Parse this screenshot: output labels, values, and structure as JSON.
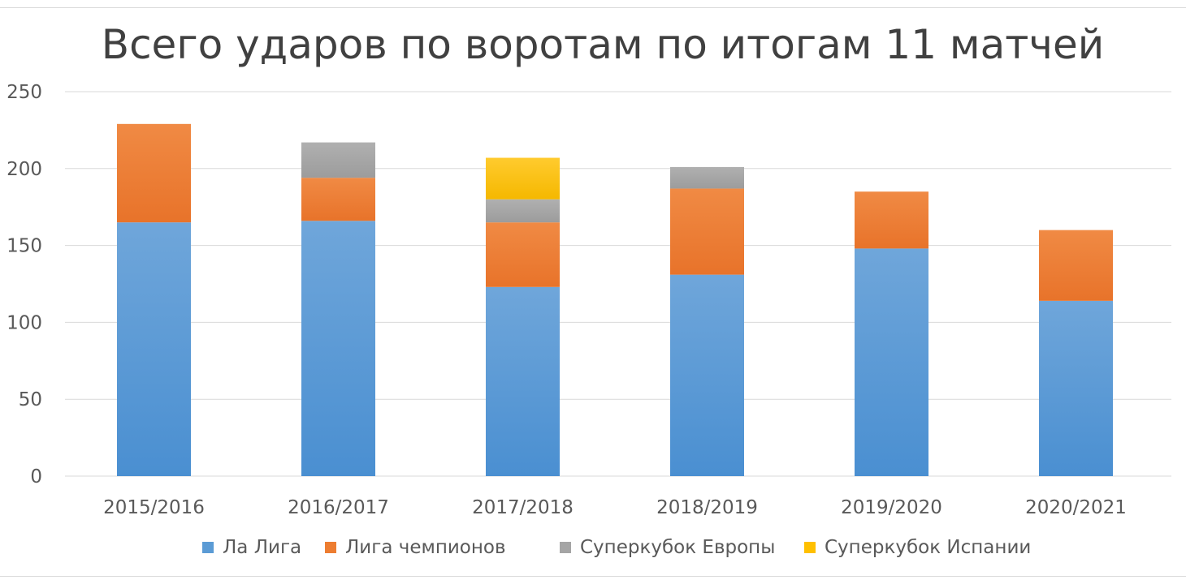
{
  "chart_data": {
    "type": "bar",
    "stacked": true,
    "title": "Всего ударов по воротам по итогам 11 матчей",
    "xlabel": "",
    "ylabel": "",
    "ylim": [
      0,
      250
    ],
    "yticks": [
      0,
      50,
      100,
      150,
      200,
      250
    ],
    "grid": true,
    "legend_position": "bottom",
    "categories": [
      "2015/2016",
      "2016/2017",
      "2017/2018",
      "2018/2019",
      "2019/2020",
      "2020/2021"
    ],
    "series": [
      {
        "name": "Ла Лига",
        "color": "#5b9bd5",
        "values": [
          165,
          166,
          123,
          131,
          148,
          114
        ]
      },
      {
        "name": "Лига чемпионов",
        "color": "#ed7d31",
        "values": [
          64,
          28,
          42,
          56,
          37,
          46
        ]
      },
      {
        "name": "Суперкубок Европы",
        "color": "#a5a5a5",
        "values": [
          0,
          23,
          15,
          14,
          0,
          0
        ]
      },
      {
        "name": "Суперкубок Испании",
        "color": "#ffc000",
        "values": [
          0,
          0,
          27,
          0,
          0,
          0
        ]
      }
    ]
  }
}
